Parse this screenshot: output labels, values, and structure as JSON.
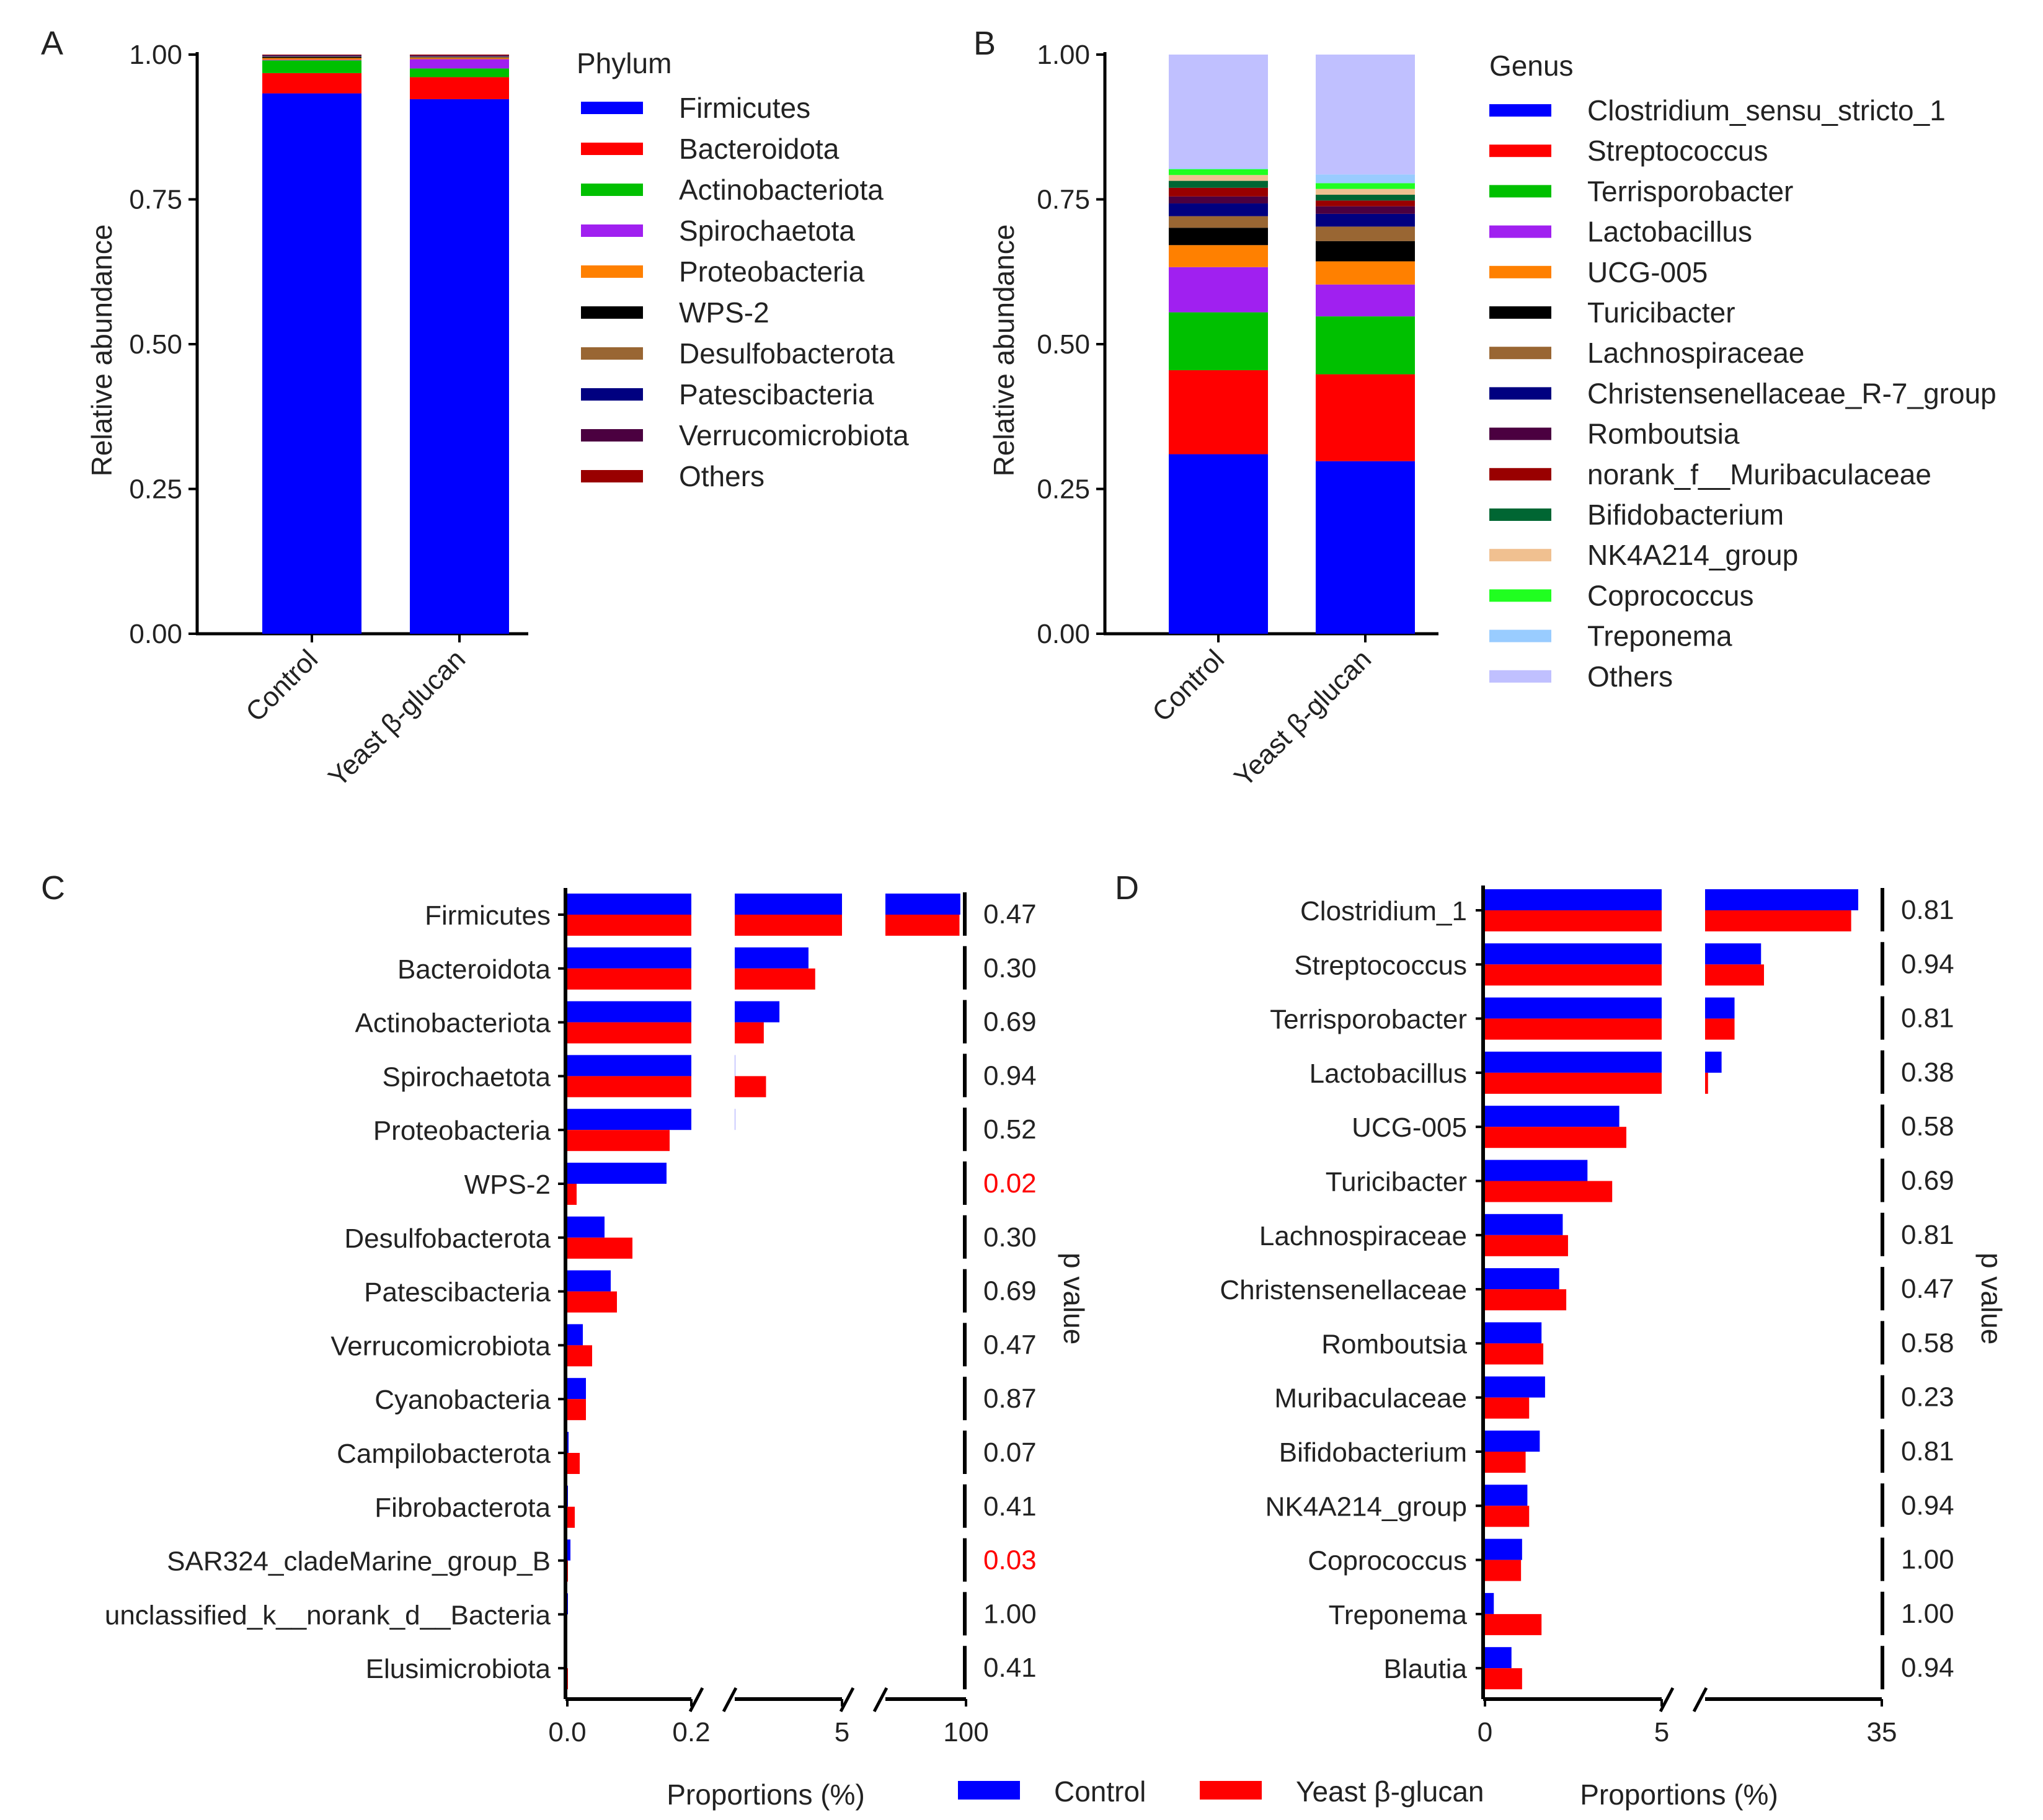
{
  "colors": {
    "control": "#0000FF",
    "treatment": "#FF0000",
    "highlight": "#FF0000",
    "text": "#222222",
    "axis": "#000000"
  },
  "legend_bottom": {
    "items": [
      "Control",
      "Yeast β-glucan"
    ]
  },
  "chart_data": [
    {
      "panel": "A",
      "type": "bar",
      "stacked": true,
      "categories": [
        "Control",
        "Yeast β-glucan"
      ],
      "ylabel": "Relative abundance",
      "ylim": [
        0,
        1
      ],
      "yticks": [
        "0.00",
        "0.25",
        "0.50",
        "0.75",
        "1.00"
      ],
      "legend_title": "Phylum",
      "series": [
        {
          "name": "Firmicutes",
          "color": "#0000FF",
          "values": [
            0.933,
            0.923
          ]
        },
        {
          "name": "Bacteroidota",
          "color": "#FF0000",
          "values": [
            0.035,
            0.038
          ]
        },
        {
          "name": "Actinobacteriota",
          "color": "#00C000",
          "values": [
            0.022,
            0.015
          ]
        },
        {
          "name": "Spirochaetota",
          "color": "#A020F0",
          "values": [
            0.001,
            0.016
          ]
        },
        {
          "name": "Proteobacteria",
          "color": "#FF8000",
          "values": [
            0.003,
            0.002
          ]
        },
        {
          "name": "WPS-2",
          "color": "#000000",
          "values": [
            0.002,
            0.0005
          ]
        },
        {
          "name": "Desulfobacterota",
          "color": "#996633",
          "values": [
            0.001,
            0.002
          ]
        },
        {
          "name": "Patescibacteria",
          "color": "#000080",
          "values": [
            0.001,
            0.001
          ]
        },
        {
          "name": "Verrucomicrobiota",
          "color": "#4B0040",
          "values": [
            0.001,
            0.001
          ]
        },
        {
          "name": "Others",
          "color": "#990000",
          "values": [
            0.001,
            0.0015
          ]
        }
      ]
    },
    {
      "panel": "B",
      "type": "bar",
      "stacked": true,
      "categories": [
        "Control",
        "Yeast β-glucan"
      ],
      "ylabel": "Relative abundance",
      "ylim": [
        0,
        1
      ],
      "yticks": [
        "0.00",
        "0.25",
        "0.50",
        "0.75",
        "1.00"
      ],
      "legend_title": "Genus",
      "series": [
        {
          "name": "Clostridium_sensu_stricto_1",
          "color": "#0000FF",
          "values": [
            0.31,
            0.298
          ]
        },
        {
          "name": "Streptococcus",
          "color": "#FF0000",
          "values": [
            0.145,
            0.15
          ]
        },
        {
          "name": "Terrisporobacter",
          "color": "#00C000",
          "values": [
            0.1,
            0.1
          ]
        },
        {
          "name": "Lactobacillus",
          "color": "#A020F0",
          "values": [
            0.078,
            0.055
          ]
        },
        {
          "name": "UCG-005",
          "color": "#FF8000",
          "values": [
            0.038,
            0.04
          ]
        },
        {
          "name": "Turicibacter",
          "color": "#000000",
          "values": [
            0.03,
            0.035
          ]
        },
        {
          "name": "Lachnospiraceae",
          "color": "#996633",
          "values": [
            0.02,
            0.025
          ]
        },
        {
          "name": "Christensenellaceae_R-7_group",
          "color": "#000080",
          "values": [
            0.022,
            0.022
          ]
        },
        {
          "name": "Romboutsia",
          "color": "#4B0040",
          "values": [
            0.012,
            0.013
          ]
        },
        {
          "name": "norank_f__Muribaculaceae",
          "color": "#990000",
          "values": [
            0.015,
            0.01
          ]
        },
        {
          "name": "Bifidobacterium",
          "color": "#006633",
          "values": [
            0.012,
            0.01
          ]
        },
        {
          "name": "NK4A214_group",
          "color": "#F0C090",
          "values": [
            0.01,
            0.01
          ]
        },
        {
          "name": "Coprococcus",
          "color": "#20FF20",
          "values": [
            0.01,
            0.01
          ]
        },
        {
          "name": "Treponema",
          "color": "#99CCFF",
          "values": [
            0.002,
            0.015
          ]
        },
        {
          "name": "Others",
          "color": "#C0C0FF",
          "values": [
            0.196,
            0.207
          ]
        }
      ]
    },
    {
      "panel": "C",
      "type": "bar",
      "orientation": "horizontal",
      "grouped": true,
      "xlabel": "Proportions (%)",
      "ylabel_right": "p value",
      "x_segments": [
        {
          "range": [
            0,
            0.2
          ],
          "ticks": [
            "0.0",
            "0.2"
          ]
        },
        {
          "range": [
            0.2,
            5
          ],
          "ticks": [
            "5"
          ]
        },
        {
          "range": [
            5,
            100
          ],
          "ticks": [
            "100"
          ]
        }
      ],
      "series_names": [
        "Control",
        "Yeast β-glucan"
      ],
      "categories": [
        "Firmicutes",
        "Bacteroidota",
        "Actinobacteriota",
        "Spirochaetota",
        "Proteobacteria",
        "WPS-2",
        "Desulfobacterota",
        "Patescibacteria",
        "Verrucomicrobiota",
        "Cyanobacteria",
        "Campilobacterota",
        "Fibrobacterota",
        "SAR324_cladeMarine_group_B",
        "unclassified_k__norank_d__Bacteria",
        "Elusimicrobiota"
      ],
      "control": [
        93.3,
        3.5,
        2.2,
        0.21,
        0.21,
        0.16,
        0.06,
        0.07,
        0.025,
        0.03,
        0.002,
        0.001,
        0.005,
        0.001,
        0.0
      ],
      "yeast": [
        92.3,
        3.8,
        1.5,
        1.6,
        0.165,
        0.015,
        0.105,
        0.08,
        0.04,
        0.03,
        0.02,
        0.012,
        0.001,
        0.0,
        0.001
      ],
      "p_values": [
        "0.47",
        "0.30",
        "0.69",
        "0.94",
        "0.52",
        "0.02",
        "0.30",
        "0.69",
        "0.47",
        "0.87",
        "0.07",
        "0.41",
        "0.03",
        "1.00",
        "0.41"
      ],
      "significant": [
        false,
        false,
        false,
        false,
        false,
        true,
        false,
        false,
        false,
        false,
        false,
        false,
        true,
        false,
        false
      ]
    },
    {
      "panel": "D",
      "type": "bar",
      "orientation": "horizontal",
      "grouped": true,
      "xlabel": "Proportions (%)",
      "ylabel_right": "p value",
      "x_segments": [
        {
          "range": [
            0,
            5
          ],
          "ticks": [
            "0",
            "5"
          ]
        },
        {
          "range": [
            5,
            35
          ],
          "ticks": [
            "35"
          ]
        }
      ],
      "series_names": [
        "Control",
        "Yeast β-glucan"
      ],
      "categories": [
        "Clostridium_1",
        "Streptococcus",
        "Terrisporobacter",
        "Lactobacillus",
        "UCG-005",
        "Turicibacter",
        "Lachnospiraceae",
        "Christensenellaceae",
        "Romboutsia",
        "Muribaculaceae",
        "Bifidobacterium",
        "NK4A214_group",
        "Coprococcus",
        "Treponema",
        "Blautia"
      ],
      "control": [
        31.0,
        14.5,
        10.0,
        7.8,
        3.8,
        2.9,
        2.2,
        2.1,
        1.6,
        1.7,
        1.55,
        1.2,
        1.05,
        0.25,
        0.75
      ],
      "yeast": [
        29.8,
        15.0,
        10.0,
        5.5,
        4.0,
        3.6,
        2.35,
        2.3,
        1.65,
        1.25,
        1.15,
        1.25,
        1.02,
        1.6,
        1.05
      ],
      "p_values": [
        "0.81",
        "0.94",
        "0.81",
        "0.38",
        "0.58",
        "0.69",
        "0.81",
        "0.47",
        "0.58",
        "0.23",
        "0.81",
        "0.94",
        "1.00",
        "1.00",
        "0.94"
      ],
      "significant": [
        false,
        false,
        false,
        false,
        false,
        false,
        false,
        false,
        false,
        false,
        false,
        false,
        false,
        false,
        false
      ]
    }
  ]
}
